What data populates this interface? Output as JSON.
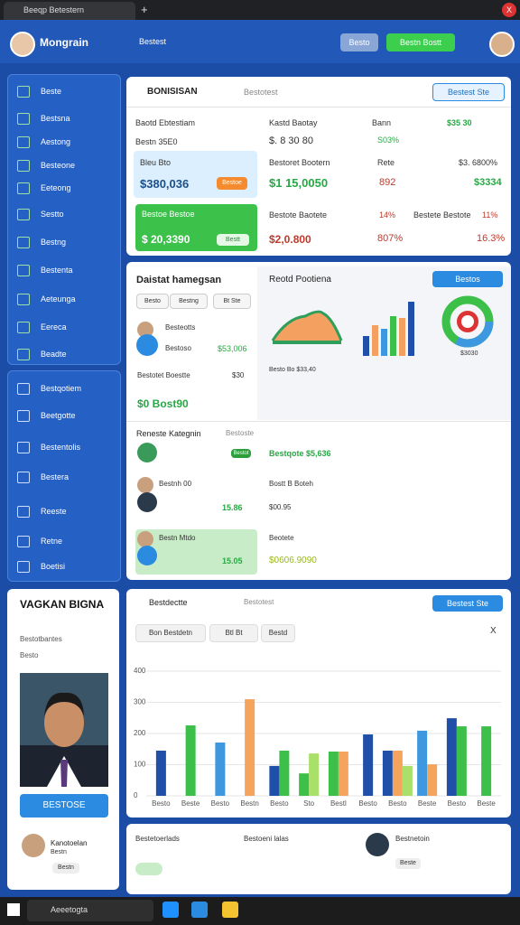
{
  "browser": {
    "tab_title": "Beeqp Betestern",
    "new_tab": "+",
    "close": "X"
  },
  "header": {
    "app_name": "Mongrain",
    "search": "Bestest",
    "button_1": "Besto",
    "button_2": "Bestn Bostt"
  },
  "sidebar": {
    "group_1": [
      "Beste",
      "Bestsna",
      "Aestong",
      "Besteone",
      "Eeteong",
      "Sestto",
      "Bestng",
      "Bestenta",
      "Aeteunga",
      "Eereca",
      "Beadte"
    ],
    "group_2": [
      "Bestqotiem",
      "Beetgotte",
      "Bestentolis",
      "Bestera",
      "Reeste",
      "Retne",
      "Boetisi"
    ]
  },
  "summary": {
    "title": "BONISISAN",
    "filter": "Bestotest",
    "action": "Bestest Ste",
    "cells": [
      {
        "label": "Baotd Ebtestiam",
        "value": "Bestn 35E0"
      },
      {
        "label": "Kastd Baotay",
        "value": "$. 8 30 80"
      },
      {
        "label": "Bann",
        "value": "S03%"
      },
      {
        "label": "$35 30"
      },
      {
        "label": "Bleu Bto",
        "value": "$380,036",
        "badge": "Bestoe"
      },
      {
        "label": "Bestoret Bootern",
        "value": "$1 15,0050"
      },
      {
        "label": "Rete",
        "value": "892"
      },
      {
        "label": "$3. 6800%",
        "value": "$3334"
      },
      {
        "label": "Bestoe Bestoe",
        "value": "$ 20,3390",
        "badge": "Bestt"
      },
      {
        "label": "Bestote Baotete",
        "value": "$2,0.800"
      },
      {
        "label": "14%",
        "value": "807%"
      },
      {
        "label": "Bestete Bestote",
        "note": "11%",
        "value": "16.3%"
      }
    ]
  },
  "activity": {
    "title": "Daistat hamegsan",
    "pills": [
      "Besto",
      "Bestng",
      "Bt Ste"
    ],
    "item_name": "Besteotts",
    "item_sub": "Bestoso",
    "item_amount": "$53,006",
    "total_label": "Bestotet Boestte",
    "total_note": "$30",
    "total_value": "$0 Bost90"
  },
  "reports": {
    "title": "Reotd Pootiena",
    "button": "Bestos",
    "donut_label": "$3030",
    "caption": "Besto Bo $33,40"
  },
  "recent": {
    "title": "Reneste Kategnin",
    "filter": "Bestoste",
    "rows": [
      {
        "badge": "Bestot",
        "detail": "Bestqote $5,636"
      },
      {
        "name": "Bestnh 00",
        "amount": "15.86",
        "detail": "Bostt B Boteh",
        "detail_value": "$00.95"
      },
      {
        "name": "Bestn Mtdo",
        "amount": "15.05",
        "detail": "Beotete",
        "detail_value": "$0606.9090"
      }
    ]
  },
  "profile": {
    "name": "VAGKAN BIGNA",
    "subtitle": "Bestotbantes",
    "meta": "Besto",
    "button": "BESTOSE"
  },
  "contact": {
    "name": "Kanotoelan",
    "role": "Bestn",
    "tag": "Bestn"
  },
  "footer": {
    "left": "Bestetoerlads",
    "middle": "Bestoeni lalas",
    "right": "Bestnetoin",
    "right_sub": "Beste"
  },
  "chart_card": {
    "title": "Bestdectte",
    "filter": "Bestotest",
    "action": "Bestest Ste",
    "tools": [
      "Bon Bestdetn",
      "Btl Bt",
      "Bestd"
    ],
    "close": "X"
  },
  "taskbar": {
    "search": "Aeeetogta"
  },
  "chart_data": {
    "type": "bar",
    "categories": [
      "Besto",
      "Beste",
      "Besto",
      "Bestn",
      "Besto",
      "Sto",
      "Bestl",
      "Besto",
      "Besto",
      "Beste",
      "Besto",
      "Beste"
    ],
    "series": [
      {
        "color": "#1f4fa8",
        "values": [
          145,
          null,
          null,
          null,
          96,
          null,
          null,
          197,
          145,
          null,
          249,
          null
        ]
      },
      {
        "color": "#3cc04a",
        "values": [
          null,
          226,
          null,
          null,
          145,
          72,
          142,
          null,
          null,
          null,
          223,
          223
        ]
      },
      {
        "color": "#3d98e0",
        "values": [
          null,
          null,
          171,
          null,
          null,
          null,
          null,
          null,
          null,
          209,
          null,
          null
        ]
      },
      {
        "color": "#f5a45d",
        "values": [
          null,
          null,
          null,
          310,
          null,
          null,
          142,
          null,
          145,
          101,
          null,
          null
        ]
      },
      {
        "color": "#a8e06a",
        "values": [
          null,
          null,
          null,
          null,
          null,
          136,
          null,
          null,
          96,
          null,
          null,
          null
        ]
      }
    ],
    "ylim": [
      0,
      400
    ],
    "yticks": [
      0,
      100,
      200,
      300,
      400
    ],
    "grid": true
  }
}
